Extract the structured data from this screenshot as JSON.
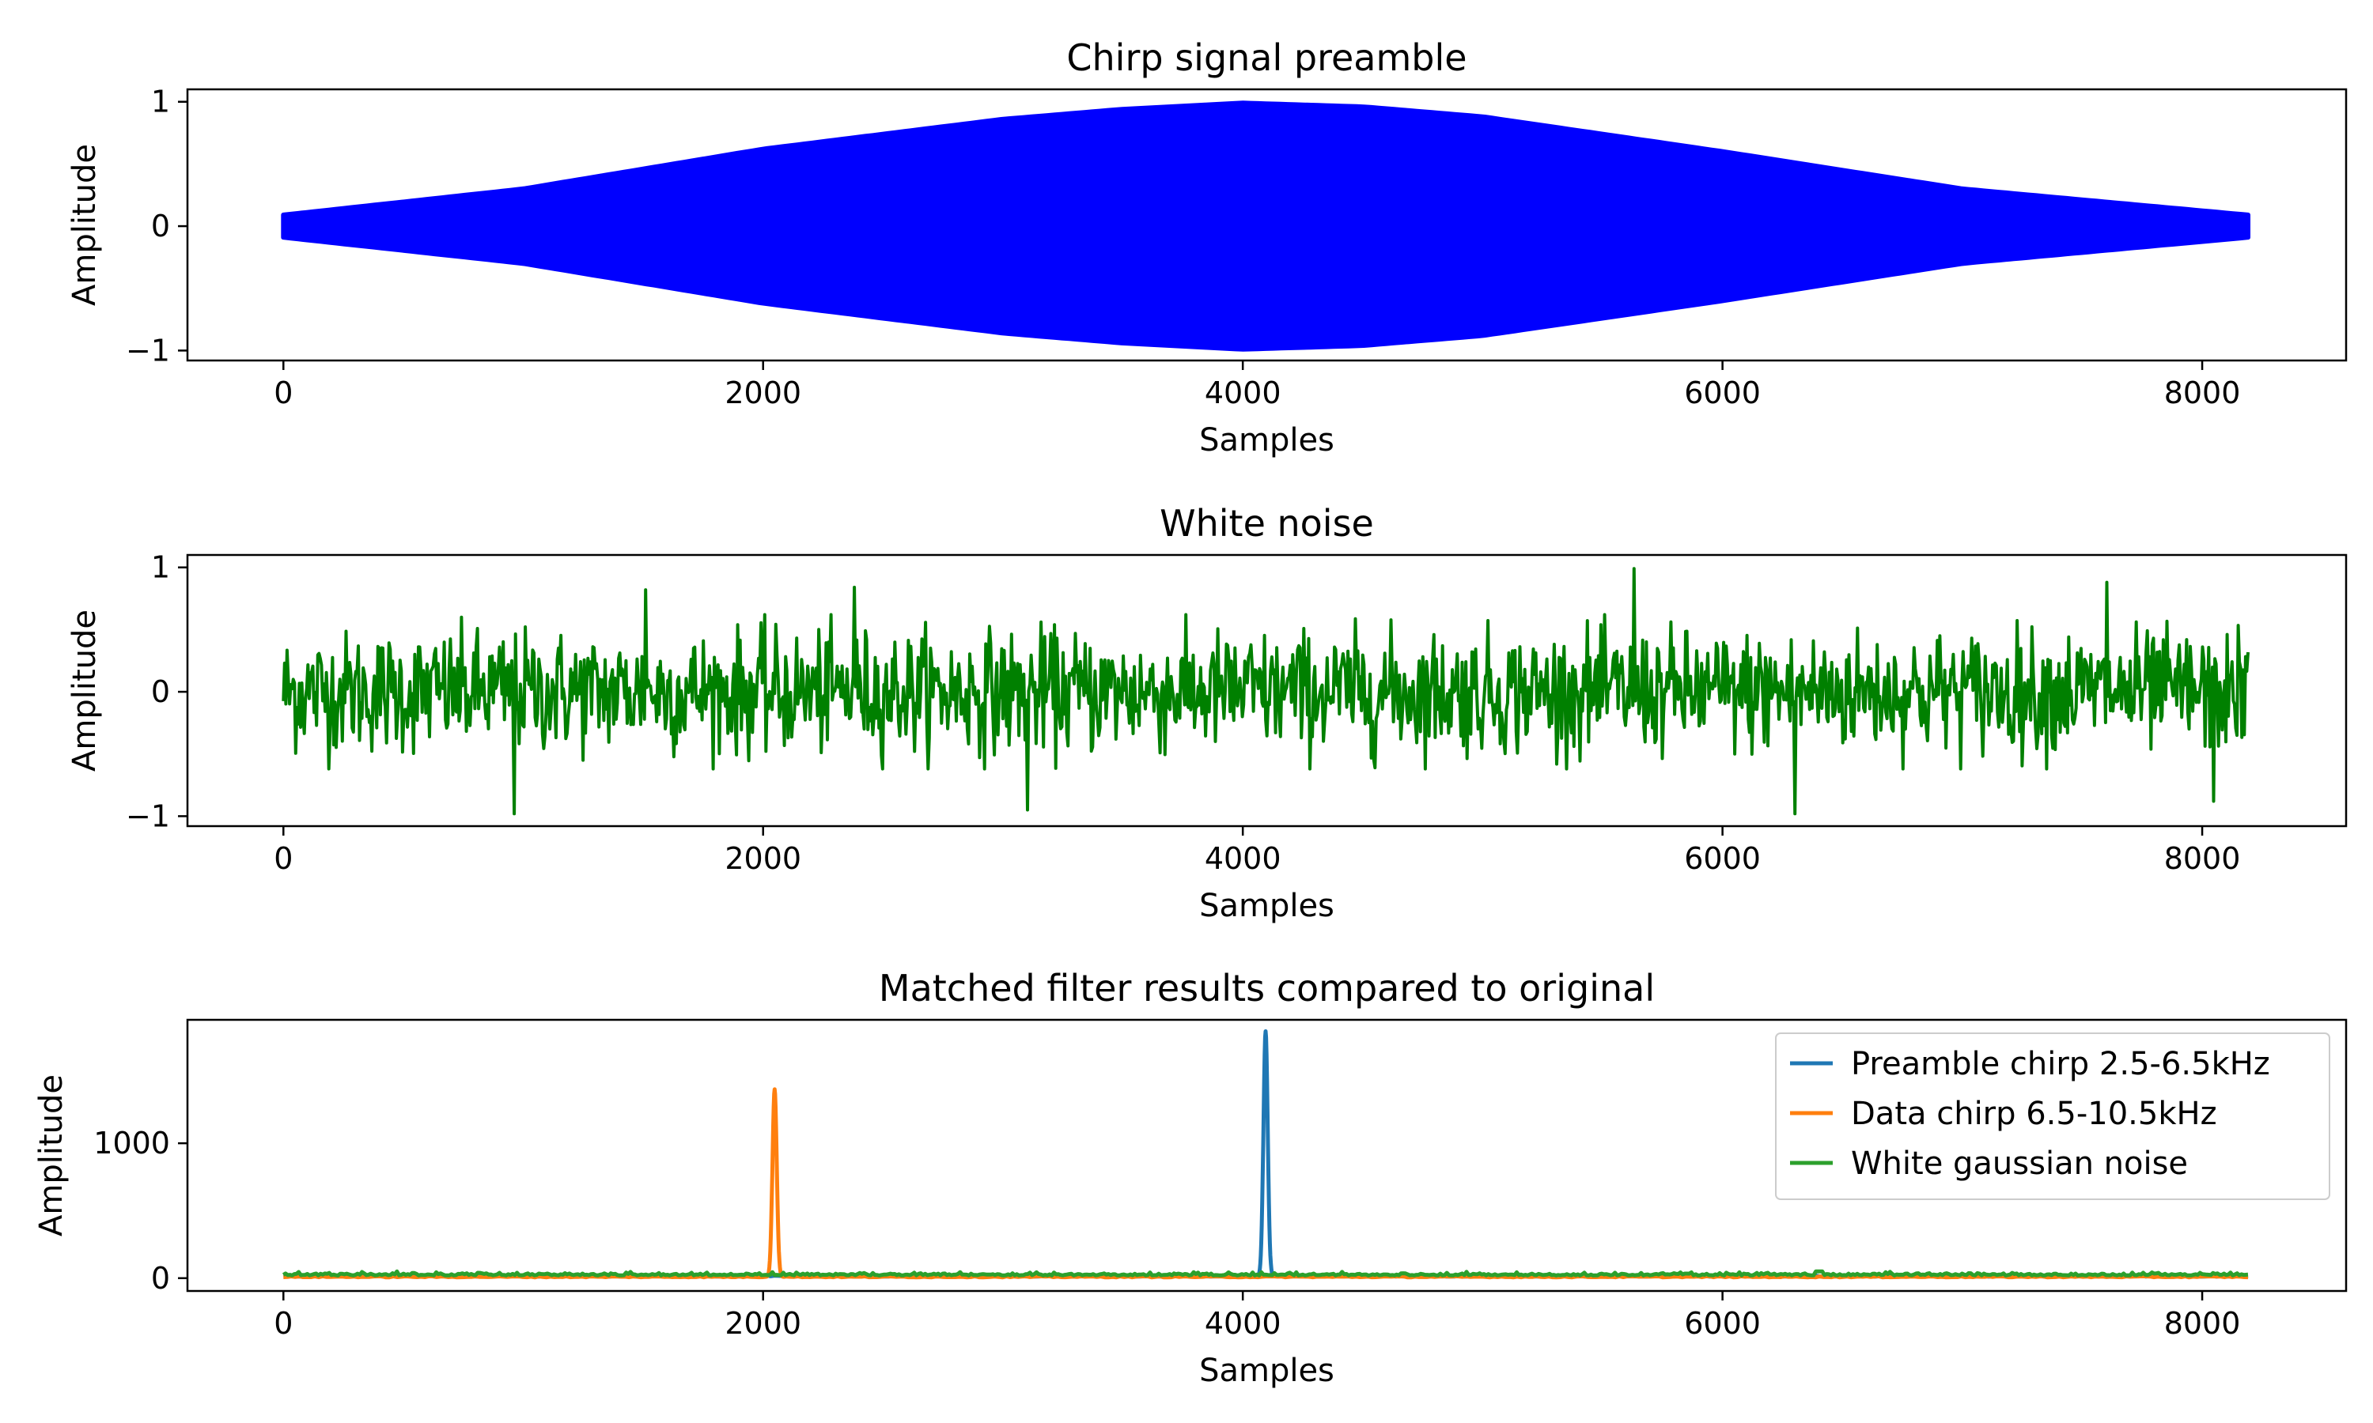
{
  "chart_data": [
    {
      "type": "area",
      "title": "Chirp signal preamble",
      "xlabel": "Samples",
      "ylabel": "Amplitude",
      "xlim": [
        -400,
        8600
      ],
      "ylim": [
        -1.08,
        1.1
      ],
      "xticks": [
        0,
        2000,
        4000,
        6000,
        8000
      ],
      "yticks": [
        -1,
        0,
        1
      ],
      "ytick_labels": [
        "−1",
        "0",
        "1"
      ],
      "grid": false,
      "series": [
        {
          "color": "#0000ff",
          "envelope_x": [
            0,
            1000,
            2000,
            3000,
            3500,
            4000,
            4500,
            5000,
            6000,
            7000,
            8191
          ],
          "envelope_max": [
            0.09,
            0.3,
            0.62,
            0.86,
            0.94,
            0.99,
            0.96,
            0.88,
            0.6,
            0.3,
            0.09
          ],
          "envelope_min": [
            -0.09,
            -0.3,
            -0.62,
            -0.86,
            -0.94,
            -0.99,
            -0.96,
            -0.88,
            -0.6,
            -0.3,
            -0.09
          ]
        }
      ]
    },
    {
      "type": "line",
      "title": "White noise",
      "xlabel": "Samples",
      "ylabel": "Amplitude",
      "xlim": [
        -400,
        8600
      ],
      "ylim": [
        -1.08,
        1.1
      ],
      "xticks": [
        0,
        2000,
        4000,
        6000,
        8000
      ],
      "yticks": [
        -1,
        0,
        1
      ],
      "ytick_labels": [
        "−1",
        "0",
        "1"
      ],
      "grid": false,
      "series": [
        {
          "color": "#008000",
          "x_start": 0,
          "x_end": 8191,
          "typical_range": [
            -0.5,
            0.5
          ],
          "max": 0.99,
          "min": -0.98,
          "peaks": [
            {
              "x": 960,
              "y": -0.98
            },
            {
              "x": 1510,
              "y": 0.82
            },
            {
              "x": 2380,
              "y": 0.84
            },
            {
              "x": 3100,
              "y": -0.95
            },
            {
              "x": 5630,
              "y": 0.99
            },
            {
              "x": 6300,
              "y": -0.98
            },
            {
              "x": 7600,
              "y": 0.88
            },
            {
              "x": 8050,
              "y": -0.88
            }
          ]
        }
      ]
    },
    {
      "type": "line",
      "title": "Matched filter results compared to original",
      "xlabel": "Samples",
      "ylabel": "Amplitude",
      "xlim": [
        -400,
        8600
      ],
      "ylim": [
        -95,
        1915
      ],
      "xticks": [
        0,
        2000,
        4000,
        6000,
        8000
      ],
      "yticks": [
        0,
        1000
      ],
      "ytick_labels": [
        "0",
        "1000"
      ],
      "grid": false,
      "legend_position": "top-right",
      "series": [
        {
          "name": "Preamble chirp 2.5-6.5kHz",
          "color": "#1f77b4",
          "baseline": 15,
          "peak": {
            "x": 4095,
            "y": 1830
          }
        },
        {
          "name": "Data chirp 6.5-10.5kHz",
          "color": "#ff7f0e",
          "baseline": 10,
          "peak": {
            "x": 2048,
            "y": 1400
          }
        },
        {
          "name": "White gaussian noise",
          "color": "#2ca02c",
          "baseline": 20,
          "noise_max": 50
        }
      ]
    }
  ]
}
